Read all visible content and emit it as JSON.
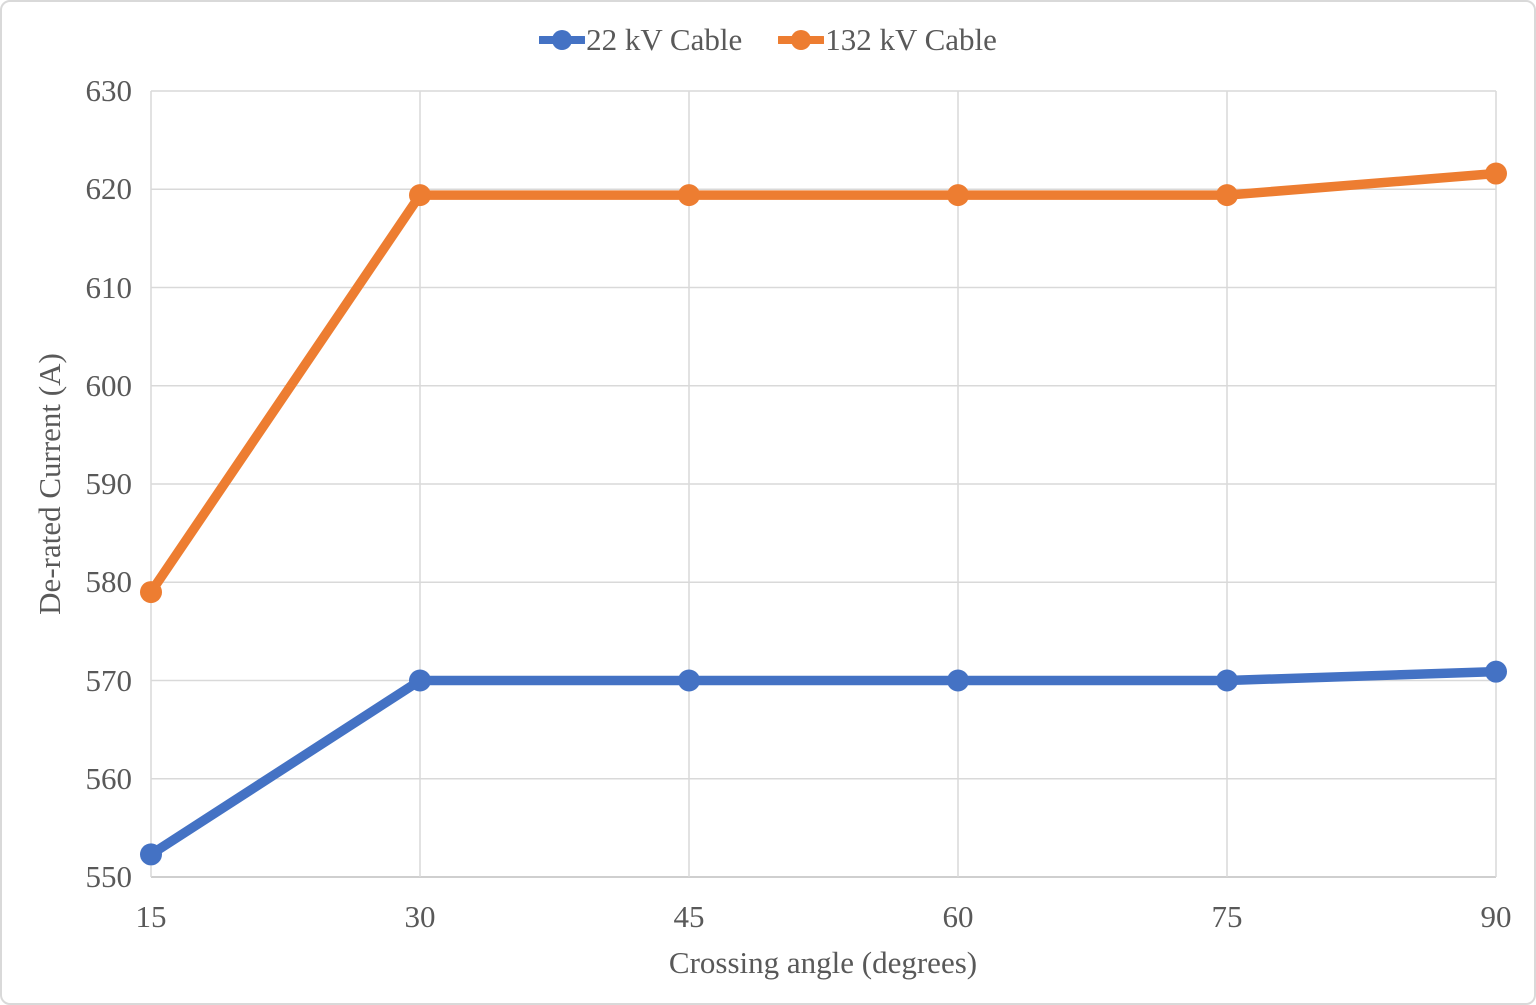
{
  "chart_data": {
    "type": "line",
    "title": "",
    "xlabel": "Crossing angle (degrees)",
    "ylabel": "De-rated Current (A)",
    "x": [
      15,
      30,
      45,
      60,
      75,
      90
    ],
    "x_ticks": [
      15,
      30,
      45,
      60,
      75,
      90
    ],
    "y_ticks": [
      550,
      560,
      570,
      580,
      590,
      600,
      610,
      620,
      630
    ],
    "xlim": [
      15,
      90
    ],
    "ylim": [
      550,
      630
    ],
    "grid": true,
    "legend_position": "top-center",
    "series": [
      {
        "name": "22 kV Cable",
        "color": "#4472C4",
        "values": [
          552.3,
          570.0,
          570.0,
          570.0,
          570.0,
          570.9
        ]
      },
      {
        "name": "132 kV Cable",
        "color": "#ED7D31",
        "values": [
          579.0,
          619.4,
          619.4,
          619.4,
          619.4,
          621.6
        ]
      }
    ]
  },
  "colors": {
    "text": "#595959",
    "gridline": "#D9D9D9",
    "axis_line": "#BFBFBF",
    "background": "#FFFFFF",
    "frame_border": "#D9D9D9"
  }
}
